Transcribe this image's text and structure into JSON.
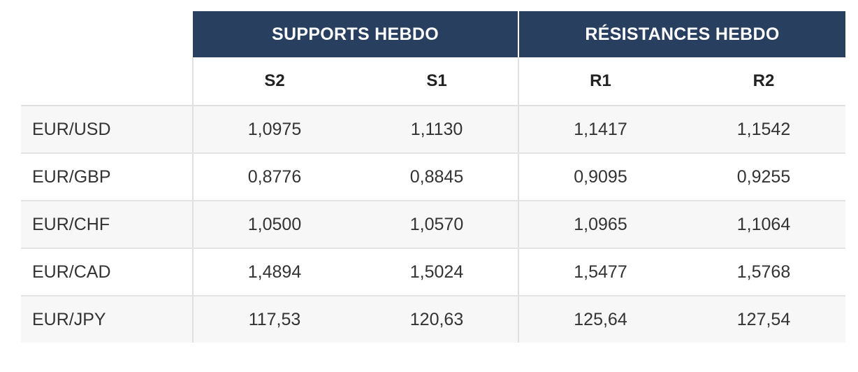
{
  "table": {
    "groups": {
      "supports": "SUPPORTS  HEBDO",
      "resistances": "RÉSISTANCES  HEBDO"
    },
    "columns": [
      "S2",
      "S1",
      "R1",
      "R2"
    ],
    "rows": [
      {
        "pair": "EUR/USD",
        "values": [
          "1,0975",
          "1,1130",
          "1,1417",
          "1,1542"
        ]
      },
      {
        "pair": "EUR/GBP",
        "values": [
          "0,8776",
          "0,8845",
          "0,9095",
          "0,9255"
        ]
      },
      {
        "pair": "EUR/CHF",
        "values": [
          "1,0500",
          "1,0570",
          "1,0965",
          "1,1064"
        ]
      },
      {
        "pair": "EUR/CAD",
        "values": [
          "1,4894",
          "1,5024",
          "1,5477",
          "1,5768"
        ]
      },
      {
        "pair": "EUR/JPY",
        "values": [
          "117,53",
          "120,63",
          "125,64",
          "127,54"
        ]
      }
    ]
  },
  "colors": {
    "header_bg": "#283f5f",
    "header_text": "#ffffff",
    "row_alt_bg": "#f7f7f7"
  }
}
